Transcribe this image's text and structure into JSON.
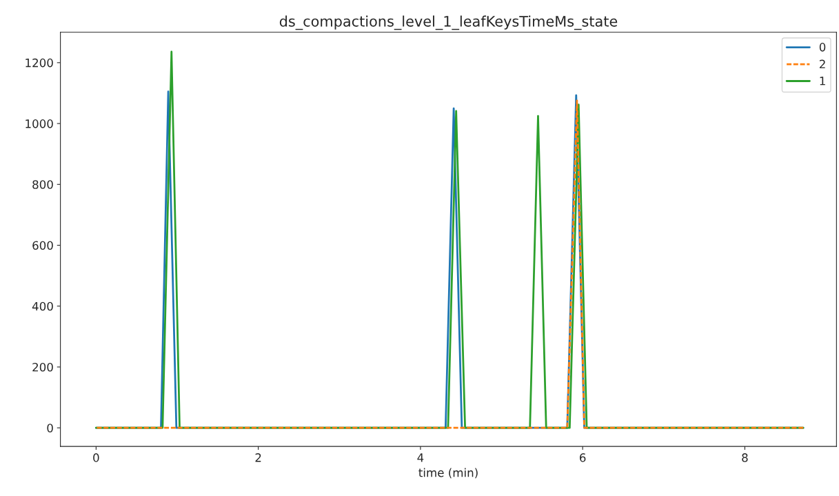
{
  "chart_data": {
    "type": "line",
    "title": "ds_compactions_level_1_leafKeysTimeMs_state",
    "xlabel": "time (min)",
    "xlim": [
      -0.44,
      9.13
    ],
    "xticks": [
      0,
      2,
      4,
      6,
      8
    ],
    "ylim": [
      -61,
      1300
    ],
    "yticks": [
      0,
      200,
      400,
      600,
      800,
      1000,
      1200
    ],
    "grid": false,
    "legend": "top right",
    "series": [
      {
        "name": "0",
        "color": "#1f77b4",
        "line_style": "solid",
        "x": [
          0,
          0.8,
          0.89,
          0.99,
          4.31,
          4.41,
          4.51,
          5.81,
          5.92,
          6.02,
          8.72
        ],
        "values": [
          0,
          0,
          1105,
          0,
          0,
          1050,
          0,
          0,
          1093,
          0,
          0
        ]
      },
      {
        "name": "2",
        "color": "#ff7f0e",
        "line_style": "dashed",
        "x": [
          0.01,
          5.81,
          5.93,
          6.02,
          8.72
        ],
        "values": [
          0,
          0,
          1075,
          0,
          0
        ]
      },
      {
        "name": "1",
        "color": "#2ca02c",
        "line_style": "solid",
        "x": [
          0,
          0.82,
          0.93,
          1.03,
          4.34,
          4.44,
          4.55,
          5.35,
          5.45,
          5.55,
          5.84,
          5.95,
          6.05,
          8.72
        ],
        "values": [
          0,
          0,
          1236,
          0,
          0,
          1041,
          0,
          0,
          1025,
          0,
          0,
          1062,
          0,
          0
        ]
      }
    ]
  }
}
